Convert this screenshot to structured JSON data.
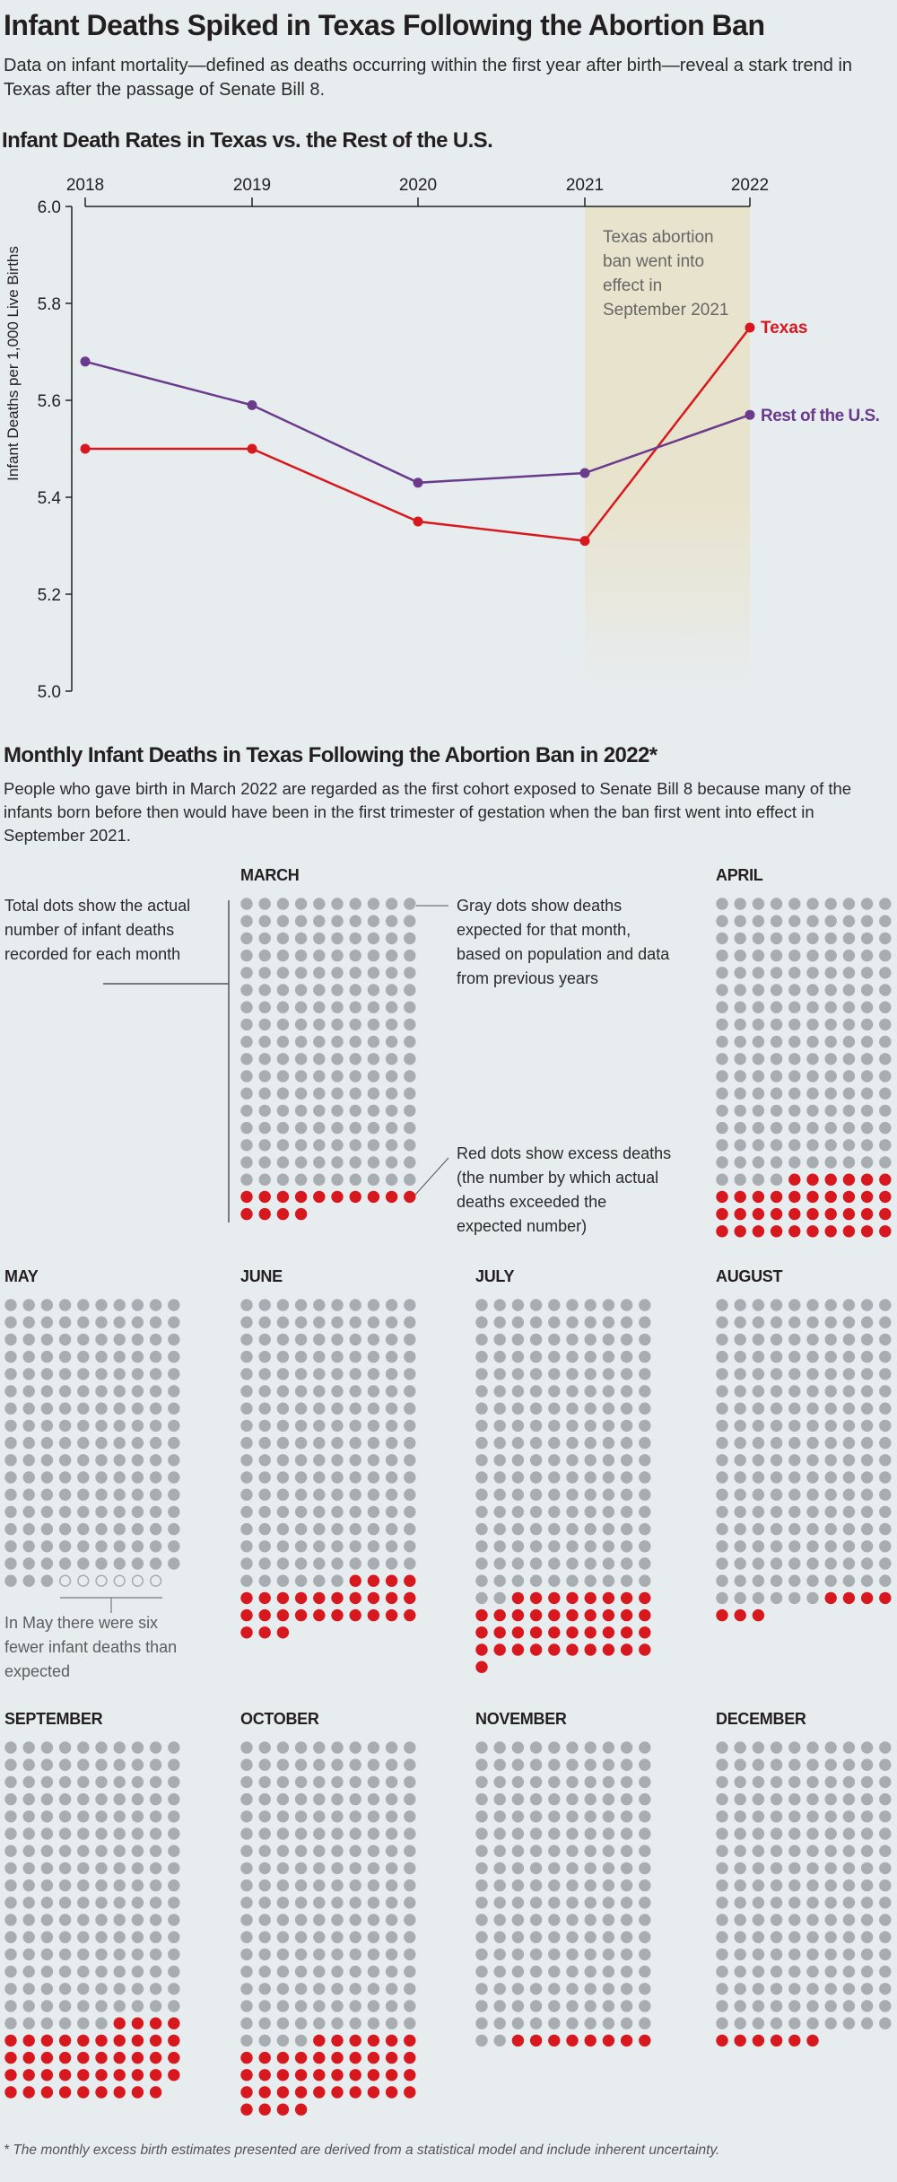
{
  "header": {
    "title": "Infant Deaths Spiked in Texas Following the Abortion Ban",
    "subtitle": "Data on infant mortality—defined as deaths occurring within the first year after birth—reveal a stark trend in Texas after the passage of Senate Bill 8."
  },
  "colors": {
    "background": "#e7ecef",
    "texas": "#d7191f",
    "rest_of_us": "#6a3a8d",
    "expected_dot": "#a8adb1",
    "excess_dot": "#d7191f",
    "ban_band": "#e8e3cc"
  },
  "chart_data": [
    {
      "type": "line",
      "title": "Infant Death Rates in Texas vs. the Rest of the U.S.",
      "xlabel": "",
      "ylabel": "Infant Deaths per 1,000 Live Births",
      "x": [
        "2018",
        "2019",
        "2020",
        "2021",
        "2022"
      ],
      "ylim": [
        5.0,
        6.0
      ],
      "yticks": [
        "5.0",
        "5.2",
        "5.4",
        "5.6",
        "5.8",
        "6.0"
      ],
      "grid": false,
      "x_axis_position": "top",
      "series": [
        {
          "name": "Texas",
          "values": [
            5.5,
            5.5,
            5.35,
            5.31,
            5.75
          ]
        },
        {
          "name": "Rest of the U.S.",
          "values": [
            5.68,
            5.59,
            5.43,
            5.45,
            5.57
          ]
        }
      ],
      "annotations": [
        {
          "text": "Texas abortion ban went into effect in September 2021",
          "x_range": [
            "2021",
            "2022"
          ],
          "type": "shaded-band"
        }
      ],
      "legend": "direct labels at line ends"
    },
    {
      "type": "dot-matrix",
      "title": "Monthly Infant Deaths in Texas Following the Abortion Ban in 2022*",
      "dots_per_row": 10,
      "categories": [
        "MARCH",
        "APRIL",
        "MAY",
        "JUNE",
        "JULY",
        "AUGUST",
        "SEPTEMBER",
        "OCTOBER",
        "NOVEMBER",
        "DECEMBER"
      ],
      "series": [
        {
          "name": "Gray dots: expected deaths (shown as recorded baseline)",
          "values": [
            170,
            164,
            163,
            166,
            172,
            176,
            166,
            174,
            172,
            170
          ]
        },
        {
          "name": "Red dots: excess deaths",
          "values": [
            14,
            36,
            0,
            27,
            39,
            7,
            43,
            40,
            8,
            6
          ]
        },
        {
          "name": "Hollow dots: fewer deaths than expected",
          "values": [
            0,
            0,
            6,
            0,
            0,
            0,
            0,
            0,
            0,
            0
          ]
        }
      ]
    }
  ],
  "line_chart": {
    "title": "Infant Death Rates in Texas vs. the Rest of the U.S.",
    "ylabel": "Infant Deaths per 1,000 Live Births",
    "band_note": [
      "Texas abortion",
      "ban went into",
      "effect in",
      "September 2021"
    ],
    "label_texas": "Texas",
    "label_rest": "Rest of the U.S."
  },
  "monthly": {
    "title": "Monthly Infant Deaths in Texas Following the Abortion Ban in 2022*",
    "description": "People who gave birth in March 2022 are regarded as the first cohort exposed to Senate Bill 8 because many of the infants born before then would have been in the first trimester of gestation when the ban first went into effect in September 2021.",
    "legend": {
      "total": "Total dots show the actual number of infant deaths recorded for each month",
      "gray": "Gray dots show deaths expected for that month, based on population and data from previous years",
      "red": "Red dots show excess deaths (the number by which actual deaths exceeded the expected number)",
      "may_note": "In May there were six fewer infant deaths than expected"
    },
    "months": [
      {
        "label": "MARCH",
        "gray": 170,
        "red": 14,
        "hollow": 0
      },
      {
        "label": "APRIL",
        "gray": 164,
        "red": 36,
        "hollow": 0
      },
      {
        "label": "MAY",
        "gray": 163,
        "red": 0,
        "hollow": 6
      },
      {
        "label": "JUNE",
        "gray": 166,
        "red": 27,
        "hollow": 0
      },
      {
        "label": "JULY",
        "gray": 172,
        "red": 39,
        "hollow": 0
      },
      {
        "label": "AUGUST",
        "gray": 176,
        "red": 7,
        "hollow": 0
      },
      {
        "label": "SEPTEMBER",
        "gray": 166,
        "red": 43,
        "hollow": 0
      },
      {
        "label": "OCTOBER",
        "gray": 174,
        "red": 40,
        "hollow": 0
      },
      {
        "label": "NOVEMBER",
        "gray": 172,
        "red": 8,
        "hollow": 0
      },
      {
        "label": "DECEMBER",
        "gray": 170,
        "red": 6,
        "hollow": 0
      }
    ]
  },
  "footnote": "* The monthly excess birth estimates presented are derived from a statistical model and include inherent uncertainty."
}
